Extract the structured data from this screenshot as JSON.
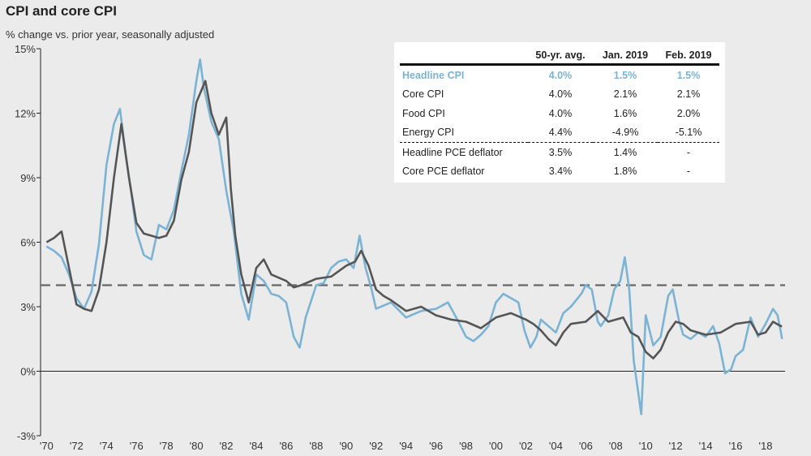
{
  "chart_data": {
    "type": "line",
    "title": "CPI and core CPI",
    "subtitle": "% change vs. prior year, seasonally adjusted",
    "ylim": [
      -3,
      15
    ],
    "y_ticks": [
      "15%",
      "12%",
      "9%",
      "6%",
      "3%",
      "0%",
      "-3%"
    ],
    "x_range": [
      1969.6,
      2019.3
    ],
    "x_ticks": [
      "'70",
      "'72",
      "'74",
      "'76",
      "'78",
      "'80",
      "'82",
      "'84",
      "'86",
      "'88",
      "'90",
      "'92",
      "'94",
      "'96",
      "'98",
      "'00",
      "'02",
      "'04",
      "'06",
      "'08",
      "'10",
      "'12",
      "'14",
      "'16",
      "'18"
    ],
    "reference_line": {
      "label": "50-yr. avg.",
      "value": 4.0,
      "style": "dashed"
    },
    "colors": {
      "headline": "#7ab3d3",
      "core": "#555555",
      "avg": "#666666"
    },
    "series": [
      {
        "key": "headline",
        "x": [
          1970.0,
          1970.5,
          1971.0,
          1971.5,
          1972.0,
          1972.5,
          1973.0,
          1973.5,
          1974.0,
          1974.5,
          1974.9,
          1975.3,
          1975.6,
          1976.0,
          1976.5,
          1977.0,
          1977.5,
          1978.0,
          1978.5,
          1979.0,
          1979.5,
          1980.0,
          1980.25,
          1980.5,
          1981.0,
          1981.5,
          1982.0,
          1982.5,
          1983.0,
          1983.5,
          1984.0,
          1984.5,
          1985.0,
          1985.5,
          1986.0,
          1986.5,
          1986.9,
          1987.3,
          1988.0,
          1988.5,
          1989.0,
          1989.5,
          1990.0,
          1990.5,
          1990.9,
          1991.3,
          1991.7,
          1992.0,
          1993.0,
          1994.0,
          1995.0,
          1996.0,
          1996.8,
          1997.5,
          1998.0,
          1998.5,
          1999.0,
          1999.5,
          2000.0,
          2000.5,
          2001.0,
          2001.5,
          2001.9,
          2002.3,
          2002.7,
          2003.0,
          2003.5,
          2004.0,
          2004.5,
          2005.0,
          2005.7,
          2006.0,
          2006.4,
          2006.8,
          2007.0,
          2007.5,
          2007.9,
          2008.3,
          2008.6,
          2008.9,
          2009.2,
          2009.5,
          2009.7,
          2010.0,
          2010.5,
          2011.0,
          2011.5,
          2011.8,
          2012.2,
          2012.5,
          2013.0,
          2013.5,
          2014.0,
          2014.5,
          2014.9,
          2015.3,
          2015.7,
          2016.0,
          2016.5,
          2017.0,
          2017.5,
          2018.0,
          2018.5,
          2018.8,
          2019.0,
          2019.1
        ],
        "values": [
          5.8,
          5.6,
          5.3,
          4.5,
          3.4,
          2.9,
          3.7,
          5.9,
          9.6,
          11.5,
          12.2,
          10.0,
          8.6,
          6.5,
          5.4,
          5.2,
          6.8,
          6.6,
          7.5,
          9.3,
          11.0,
          13.5,
          14.5,
          13.2,
          11.6,
          10.8,
          8.4,
          6.5,
          3.6,
          2.4,
          4.5,
          4.2,
          3.6,
          3.5,
          3.2,
          1.6,
          1.1,
          2.5,
          4.0,
          4.1,
          4.8,
          5.1,
          5.2,
          4.8,
          6.3,
          4.8,
          3.8,
          2.9,
          3.2,
          2.5,
          2.8,
          2.9,
          3.2,
          2.3,
          1.6,
          1.4,
          1.7,
          2.1,
          3.2,
          3.6,
          3.4,
          3.2,
          1.9,
          1.1,
          1.6,
          2.4,
          2.1,
          1.8,
          2.7,
          3.0,
          3.6,
          4.0,
          3.8,
          2.3,
          2.1,
          2.6,
          3.8,
          4.2,
          5.3,
          3.8,
          0.5,
          -1.0,
          -2.0,
          2.6,
          1.2,
          1.6,
          3.5,
          3.8,
          2.4,
          1.7,
          1.5,
          1.8,
          1.6,
          2.1,
          1.3,
          -0.1,
          0.1,
          0.7,
          1.0,
          2.5,
          1.6,
          2.2,
          2.9,
          2.6,
          1.9,
          1.5
        ]
      },
      {
        "key": "core",
        "x": [
          1970.0,
          1970.5,
          1971.0,
          1971.5,
          1972.0,
          1972.5,
          1973.0,
          1973.5,
          1974.0,
          1974.5,
          1975.0,
          1975.5,
          1976.0,
          1976.5,
          1977.0,
          1977.5,
          1978.0,
          1978.5,
          1979.0,
          1979.5,
          1980.0,
          1980.6,
          1981.0,
          1981.5,
          1982.0,
          1982.3,
          1982.6,
          1983.0,
          1983.5,
          1984.0,
          1984.5,
          1985.0,
          1986.0,
          1986.5,
          1987.0,
          1988.0,
          1989.0,
          1990.0,
          1990.6,
          1991.0,
          1991.5,
          1992.0,
          1992.5,
          1993.0,
          1994.0,
          1995.0,
          1996.0,
          1997.0,
          1998.0,
          1999.0,
          2000.0,
          2001.0,
          2002.0,
          2002.5,
          2003.0,
          2003.5,
          2004.0,
          2004.5,
          2005.0,
          2006.0,
          2006.8,
          2007.5,
          2008.0,
          2008.5,
          2009.0,
          2009.5,
          2010.0,
          2010.5,
          2011.0,
          2011.5,
          2012.0,
          2012.5,
          2013.0,
          2014.0,
          2015.0,
          2016.0,
          2017.0,
          2017.5,
          2018.0,
          2018.5,
          2019.0,
          2019.1
        ],
        "values": [
          6.0,
          6.2,
          6.5,
          4.8,
          3.1,
          2.9,
          2.8,
          3.8,
          6.0,
          9.0,
          11.5,
          9.0,
          6.9,
          6.4,
          6.3,
          6.2,
          6.3,
          7.0,
          8.9,
          10.2,
          12.5,
          13.5,
          12.0,
          11.0,
          11.8,
          8.5,
          6.3,
          4.5,
          3.2,
          4.8,
          5.2,
          4.5,
          4.2,
          3.9,
          4.0,
          4.3,
          4.4,
          4.9,
          5.1,
          5.6,
          4.9,
          3.8,
          3.5,
          3.3,
          2.8,
          3.0,
          2.6,
          2.4,
          2.3,
          2.0,
          2.5,
          2.7,
          2.4,
          2.2,
          1.9,
          1.5,
          1.2,
          1.8,
          2.2,
          2.3,
          2.8,
          2.3,
          2.4,
          2.5,
          1.8,
          1.6,
          0.9,
          0.6,
          1.0,
          1.8,
          2.3,
          2.2,
          1.9,
          1.7,
          1.8,
          2.2,
          2.3,
          1.7,
          1.8,
          2.3,
          2.1,
          2.1
        ]
      }
    ]
  },
  "table": {
    "columns": [
      "",
      "50-yr. avg.",
      "Jan. 2019",
      "Feb. 2019"
    ],
    "rows": [
      {
        "label": "Headline CPI",
        "values": [
          "4.0%",
          "1.5%",
          "1.5%"
        ],
        "highlight": true
      },
      {
        "label": "Core CPI",
        "values": [
          "4.0%",
          "2.1%",
          "2.1%"
        ]
      },
      {
        "label": "Food CPI",
        "values": [
          "4.0%",
          "1.6%",
          "2.0%"
        ]
      },
      {
        "label": "Energy CPI",
        "values": [
          "4.4%",
          "-4.9%",
          "-5.1%"
        ],
        "separator": true
      },
      {
        "label": "Headline PCE deflator",
        "values": [
          "3.5%",
          "1.4%",
          "-"
        ]
      },
      {
        "label": "Core PCE deflator",
        "values": [
          "3.4%",
          "1.8%",
          "-"
        ]
      }
    ]
  }
}
